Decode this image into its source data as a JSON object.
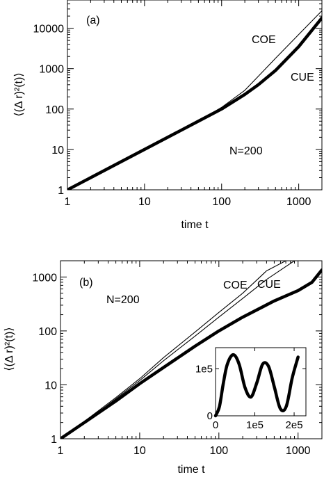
{
  "chart_data": [
    {
      "type": "line",
      "panel_label": "(a)",
      "xlabel": "time t",
      "ylabel": "⟨(Δ r)²(t)⟩",
      "x_scale": "log",
      "y_scale": "log",
      "xlim": [
        1,
        2000
      ],
      "ylim": [
        1,
        50000
      ],
      "x_ticks": [
        1,
        10,
        100,
        1000
      ],
      "x_tick_labels": [
        "1",
        "10",
        "100",
        "1000"
      ],
      "y_ticks": [
        1,
        10,
        100,
        1000,
        10000
      ],
      "y_tick_labels": [
        "1",
        "10",
        "100",
        "1000",
        "10000"
      ],
      "annotation": "N=200",
      "series": [
        {
          "name": "COE",
          "line": "thin",
          "x": [
            1,
            2,
            5,
            10,
            20,
            50,
            100,
            200,
            300,
            500,
            1000,
            2000
          ],
          "values": [
            1,
            2,
            5,
            10,
            20,
            50,
            110,
            290,
            650,
            1800,
            7000,
            27000
          ]
        },
        {
          "name": "CUE",
          "line": "thick",
          "x": [
            1,
            2,
            5,
            10,
            20,
            50,
            100,
            200,
            300,
            500,
            1000,
            2000
          ],
          "values": [
            1,
            2,
            5,
            10,
            20,
            50,
            100,
            230,
            400,
            900,
            3500,
            18000
          ]
        }
      ]
    },
    {
      "type": "line",
      "panel_label": "(b)",
      "xlabel": "time t",
      "ylabel": "⟨(Δ r)²(t)⟩",
      "x_scale": "log",
      "y_scale": "log",
      "xlim": [
        1,
        2000
      ],
      "ylim": [
        1,
        2000
      ],
      "x_ticks": [
        1,
        10,
        100,
        1000
      ],
      "x_tick_labels": [
        "1",
        "10",
        "100",
        "1000"
      ],
      "y_ticks": [
        1,
        10,
        100,
        1000
      ],
      "y_tick_labels": [
        "1",
        "10",
        "100",
        "1000"
      ],
      "annotation": "N=200",
      "series": [
        {
          "name": "COE",
          "line": "thin",
          "x": [
            1,
            2,
            5,
            10,
            20,
            50,
            100,
            200,
            400,
            700
          ],
          "values": [
            1,
            2.1,
            5.8,
            13,
            32,
            95,
            220,
            500,
            1300,
            2000
          ]
        },
        {
          "name": "",
          "line": "thin",
          "x": [
            1,
            2,
            5,
            10,
            20,
            50,
            100,
            200,
            400,
            900
          ],
          "values": [
            1,
            2,
            5.5,
            12,
            28,
            80,
            180,
            400,
            900,
            2000
          ]
        },
        {
          "name": "CUE",
          "line": "thick",
          "x": [
            1,
            2,
            5,
            10,
            20,
            50,
            100,
            200,
            500,
            1000,
            1500,
            2000
          ],
          "values": [
            1,
            2,
            5,
            10.5,
            21,
            52,
            100,
            180,
            360,
            560,
            800,
            1350
          ]
        }
      ],
      "inset": {
        "type": "line",
        "x_ticks": [
          0,
          100000,
          200000
        ],
        "x_tick_labels": [
          "0",
          "1e5",
          "2e5"
        ],
        "y_ticks": [
          0,
          100000
        ],
        "y_tick_labels": [
          "0",
          "1e5"
        ],
        "xlim": [
          0,
          230000
        ],
        "ylim": [
          0,
          145000
        ],
        "x": [
          0,
          10000,
          20000,
          30000,
          45000,
          60000,
          75000,
          90000,
          105000,
          120000,
          135000,
          150000,
          165000,
          180000,
          195000,
          210000
        ],
        "values": [
          0,
          20000,
          70000,
          110000,
          130000,
          110000,
          60000,
          40000,
          70000,
          110000,
          105000,
          60000,
          15000,
          20000,
          80000,
          125000
        ]
      }
    }
  ]
}
